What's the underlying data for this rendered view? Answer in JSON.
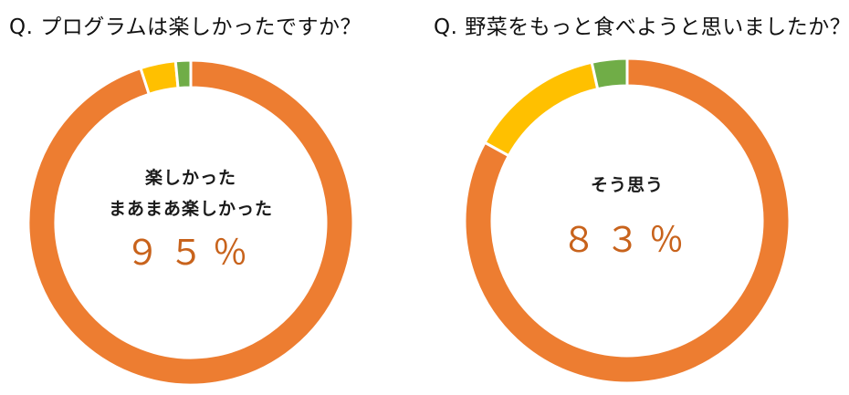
{
  "chart_data": [
    {
      "type": "pie",
      "variant": "donut",
      "title": "Q. プログラムは楽しかったですか？",
      "center_text": [
        "楽しかった",
        "まあまあ楽しかった"
      ],
      "center_value": "９５％",
      "slices": [
        {
          "value": 95,
          "color": "#ED7D31"
        },
        {
          "value": 3.5,
          "color": "#FFC000"
        },
        {
          "value": 1.5,
          "color": "#70AD47"
        }
      ]
    },
    {
      "type": "pie",
      "variant": "donut",
      "title": "Q. 野菜をもっと食べようと思いましたか？",
      "center_text": [
        "そう思う"
      ],
      "center_value": "８３％",
      "slices": [
        {
          "value": 83,
          "color": "#ED7D31"
        },
        {
          "value": 13.5,
          "color": "#FFC000"
        },
        {
          "value": 3.5,
          "color": "#70AD47"
        }
      ]
    }
  ]
}
